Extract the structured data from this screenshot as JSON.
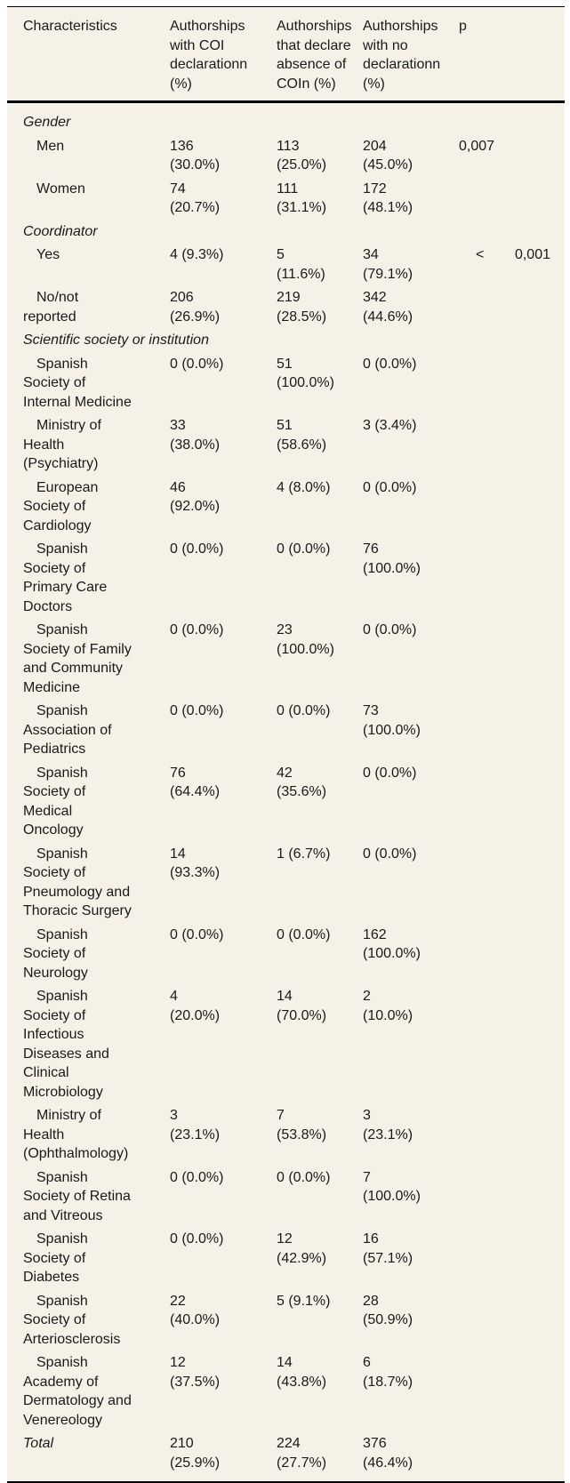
{
  "colors": {
    "table_bg": "#f5f1e7",
    "border": "#000000",
    "text": "#1a1a1a"
  },
  "table": {
    "header": {
      "characteristics": "Characteristics",
      "coi": "Authorships with COI declarationn (%)",
      "absence": "Authorships that declare absence of COIn (%)",
      "none": "Authorships with no declarationn (%)",
      "p": "p"
    },
    "rows": [
      {
        "type": "section",
        "label": "Gender"
      },
      {
        "type": "item",
        "label": "Men",
        "coi": "136 (30.0%)",
        "absence": "113 (25.0%)",
        "none": "204 (45.0%)",
        "p": "0,007"
      },
      {
        "type": "item",
        "label": "Women",
        "coi": "74 (20.7%)",
        "absence": "111 (31.1%)",
        "none": "172 (48.1%)",
        "p": ""
      },
      {
        "type": "section",
        "label": "Coordinator"
      },
      {
        "type": "item",
        "label": "Yes",
        "coi": "4 (9.3%)",
        "absence": "5 (11.6%)",
        "none": "34 (79.1%)",
        "p_lt": "<",
        "p": "0,001"
      },
      {
        "type": "item",
        "label": "No/not reported",
        "coi": "206 (26.9%)",
        "absence": "219 (28.5%)",
        "none": "342 (44.6%)",
        "p": ""
      },
      {
        "type": "section",
        "label": "Scientific society or institution"
      },
      {
        "type": "item",
        "label": "Spanish Society of Internal Medicine",
        "coi": "0 (0.0%)",
        "absence": "51 (100.0%)",
        "none": "0 (0.0%)",
        "p": ""
      },
      {
        "type": "item",
        "label": "Ministry of Health (Psychiatry)",
        "coi": "33 (38.0%)",
        "absence": "51 (58.6%)",
        "none": "3 (3.4%)",
        "p": ""
      },
      {
        "type": "item",
        "label": "European Society of Cardiology",
        "coi": "46 (92.0%)",
        "absence": "4 (8.0%)",
        "none": "0 (0.0%)",
        "p": ""
      },
      {
        "type": "item",
        "label": "Spanish Society of Primary Care Doctors",
        "coi": "0 (0.0%)",
        "absence": "0 (0.0%)",
        "none": "76 (100.0%)",
        "p": ""
      },
      {
        "type": "item",
        "label": "Spanish Society of Family and Community Medicine",
        "coi": "0 (0.0%)",
        "absence": "23 (100.0%)",
        "none": "0 (0.0%)",
        "p": ""
      },
      {
        "type": "item",
        "label": "Spanish Association of Pediatrics",
        "coi": "0 (0.0%)",
        "absence": "0 (0.0%)",
        "none": "73 (100.0%)",
        "p": ""
      },
      {
        "type": "item",
        "label": "Spanish Society of Medical Oncology",
        "coi": "76 (64.4%)",
        "absence": "42 (35.6%)",
        "none": "0 (0.0%)",
        "p": ""
      },
      {
        "type": "item",
        "label": "Spanish Society of Pneumology and Thoracic Surgery",
        "coi": "14 (93.3%)",
        "absence": "1 (6.7%)",
        "none": "0 (0.0%)",
        "p": ""
      },
      {
        "type": "item",
        "label": "Spanish Society of Neurology",
        "coi": "0 (0.0%)",
        "absence": "0 (0.0%)",
        "none": "162 (100.0%)",
        "p": ""
      },
      {
        "type": "item",
        "label": "Spanish Society of Infectious Diseases and Clinical Microbiology",
        "coi": "4 (20.0%)",
        "absence": "14 (70.0%)",
        "none": "2 (10.0%)",
        "p": ""
      },
      {
        "type": "item",
        "label": "Ministry of Health (Ophthalmology)",
        "coi": "3 (23.1%)",
        "absence": "7 (53.8%)",
        "none": "3 (23.1%)",
        "p": ""
      },
      {
        "type": "item",
        "label": "Spanish Society of Retina and Vitreous",
        "coi": "0 (0.0%)",
        "absence": "0 (0.0%)",
        "none": "7 (100.0%)",
        "p": ""
      },
      {
        "type": "item",
        "label": "Spanish Society of Diabetes",
        "coi": "0 (0.0%)",
        "absence": "12 (42.9%)",
        "none": "16 (57.1%)",
        "p": ""
      },
      {
        "type": "item",
        "label": "Spanish Society of Arteriosclerosis",
        "coi": "22 (40.0%)",
        "absence": "5 (9.1%)",
        "none": "28 (50.9%)",
        "p": ""
      },
      {
        "type": "item",
        "label": "Spanish Academy of Dermatology and Venereology",
        "coi": "12 (37.5%)",
        "absence": "14 (43.8%)",
        "none": "6 (18.7%)",
        "p": ""
      },
      {
        "type": "total",
        "label": "Total",
        "coi": "210 (25.9%)",
        "absence": "224 (27.7%)",
        "none": "376 (46.4%)",
        "p": ""
      }
    ]
  }
}
